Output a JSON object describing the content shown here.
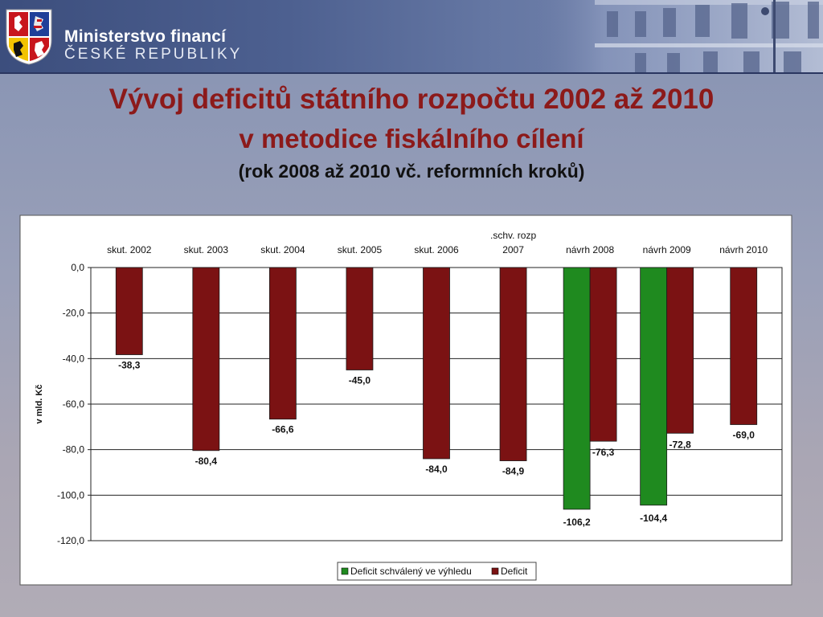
{
  "header": {
    "ministry_name": "Ministerstvo financí",
    "ministry_sub": "ČESKÉ REPUBLIKY"
  },
  "slide": {
    "title_line1": "Vývoj deficitů státního rozpočtu 2002 až 2010",
    "title_line2": "v metodice fiskálního cílení",
    "subtitle": "(rok 2008 až 2010 vč. reformních kroků)"
  },
  "colors": {
    "deficit": "#7b1213",
    "approved": "#1f8a1f",
    "title": "#8c1a1a"
  },
  "chart_data": {
    "type": "bar",
    "ylabel": "v mld. Kč",
    "ylim": [
      -120,
      0
    ],
    "yticks": [
      0,
      -20,
      -40,
      -60,
      -80,
      -100,
      -120
    ],
    "ytick_labels": [
      "0,0",
      "-20,0",
      "-40,0",
      "-60,0",
      "-80,0",
      "-100,0",
      "-120,0"
    ],
    "grid": true,
    "legend_position": "bottom",
    "x_axis_position": "top",
    "categories": [
      [
        "skut. 2002"
      ],
      [
        "skut. 2003"
      ],
      [
        "skut. 2004"
      ],
      [
        "skut. 2005"
      ],
      [
        "skut. 2006"
      ],
      [
        ".schv. rozp",
        "2007"
      ],
      [
        "návrh 2008"
      ],
      [
        "návrh 2009"
      ],
      [
        "návrh 2010"
      ]
    ],
    "series": [
      {
        "name": "Deficit schválený ve výhledu",
        "color": "#1f8a1f",
        "values": [
          null,
          null,
          null,
          null,
          null,
          null,
          -106.2,
          -104.4,
          null
        ],
        "labels": [
          "",
          "",
          "",
          "",
          "",
          "",
          "-106,2",
          "-104,4",
          ""
        ]
      },
      {
        "name": "Deficit",
        "color": "#7b1213",
        "values": [
          -38.3,
          -80.4,
          -66.6,
          -45.0,
          -84.0,
          -84.9,
          -76.3,
          -72.8,
          -69.0
        ],
        "labels": [
          "-38,3",
          "-80,4",
          "-66,6",
          "-45,0",
          "-84,0",
          "-84,9",
          "-76,3",
          "-72,8",
          "-69,0"
        ]
      }
    ]
  }
}
